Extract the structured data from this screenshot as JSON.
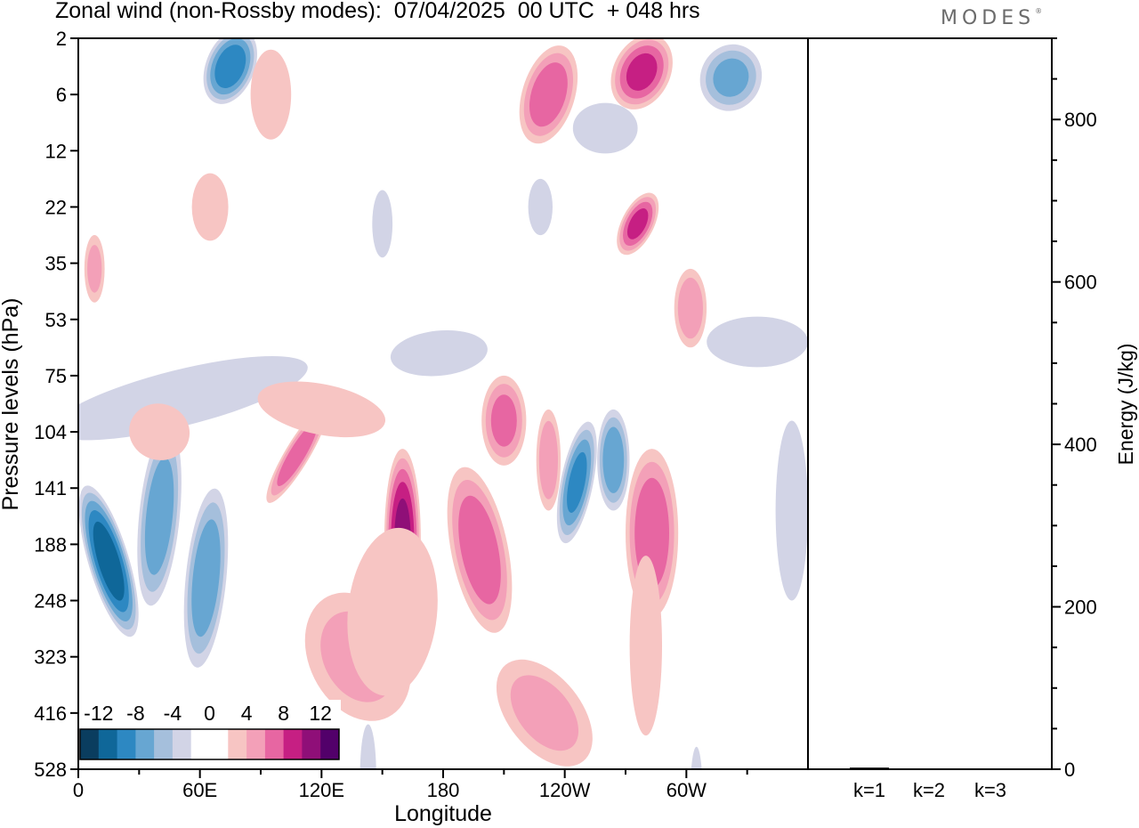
{
  "title": "Zonal wind (non-Rossby modes):  07/04/2025  00 UTC  + 048 hrs",
  "logo": "MODES",
  "logo_mark": "®",
  "colors": {
    "neg": [
      "#0a3d5f",
      "#0f6799",
      "#2d88c2",
      "#67a6d2",
      "#a5bfdc",
      "#d2d4e6"
    ],
    "pos": [
      "#f7c5c3",
      "#f3a0b8",
      "#e766a2",
      "#c61f83",
      "#8f0f78",
      "#52006a"
    ],
    "zero": "#ffffff"
  },
  "chart_data": [
    {
      "type": "heatmap",
      "title": "Zonal wind (non-Rossby modes):  07/04/2025  00 UTC  + 048 hrs",
      "xlabel": "Longitude",
      "ylabel": "Pressure levels (hPa)",
      "x_ticks": [
        "0",
        "60E",
        "120E",
        "180",
        "120W",
        "60W"
      ],
      "x_tick_values": [
        0,
        60,
        120,
        180,
        240,
        300
      ],
      "x_range": [
        0,
        360
      ],
      "y_ticks": [
        "2",
        "6",
        "12",
        "22",
        "35",
        "53",
        "75",
        "104",
        "141",
        "188",
        "248",
        "323",
        "416",
        "528"
      ],
      "colorbar_labels": [
        "-12",
        "-8",
        "-4",
        "0",
        "4",
        "8",
        "12"
      ],
      "colorbar_levels": [
        -14,
        -12,
        -10,
        -8,
        -6,
        -4,
        -2,
        2,
        4,
        6,
        8,
        10,
        12,
        14
      ],
      "blobs": [
        {
          "lon": 15,
          "lev": 9.3,
          "w": 10,
          "h": 1.4,
          "v": -11,
          "tilt": -0.3
        },
        {
          "lon": 40,
          "lev": 8.5,
          "w": 10,
          "h": 1.6,
          "v": -7,
          "tilt": 0.1
        },
        {
          "lon": 63,
          "lev": 9.6,
          "w": 10,
          "h": 1.6,
          "v": -7,
          "tilt": 0.1
        },
        {
          "lon": 75,
          "lev": 0.5,
          "w": 12,
          "h": 0.7,
          "v": -9,
          "tilt": 0.4
        },
        {
          "lon": 160,
          "lev": 8.9,
          "w": 9,
          "h": 1.6,
          "v": 10,
          "tilt": 0.0
        },
        {
          "lon": 198,
          "lev": 9.1,
          "w": 14,
          "h": 1.5,
          "v": 7,
          "tilt": -0.2
        },
        {
          "lon": 283,
          "lev": 8.8,
          "w": 13,
          "h": 1.5,
          "v": 7,
          "tilt": 0.0
        },
        {
          "lon": 246,
          "lev": 7.9,
          "w": 8,
          "h": 1.1,
          "v": -8,
          "tilt": 0.2
        },
        {
          "lon": 264,
          "lev": 7.5,
          "w": 8,
          "h": 0.9,
          "v": -7,
          "tilt": 0.0
        },
        {
          "lon": 210,
          "lev": 6.8,
          "w": 11,
          "h": 0.8,
          "v": 6,
          "tilt": 0.0
        },
        {
          "lon": 108,
          "lev": 7.4,
          "w": 6,
          "h": 1.0,
          "v": 7,
          "tilt": 0.6
        },
        {
          "lon": 232,
          "lev": 7.5,
          "w": 6,
          "h": 0.9,
          "v": 5,
          "tilt": 0.0
        },
        {
          "lon": 232,
          "lev": 1.0,
          "w": 13,
          "h": 0.9,
          "v": 7,
          "tilt": 0.3
        },
        {
          "lon": 278,
          "lev": 0.6,
          "w": 14,
          "h": 0.7,
          "v": 8,
          "tilt": 0.5
        },
        {
          "lon": 322,
          "lev": 0.7,
          "w": 15,
          "h": 0.6,
          "v": -6,
          "tilt": 0.4
        },
        {
          "lon": 276,
          "lev": 3.3,
          "w": 8,
          "h": 0.6,
          "v": 8,
          "tilt": 0.5
        },
        {
          "lon": 302,
          "lev": 4.8,
          "w": 8,
          "h": 0.7,
          "v": 5,
          "tilt": 0.0
        },
        {
          "lon": 95,
          "lev": 1.0,
          "w": 10,
          "h": 0.8,
          "v": 3,
          "tilt": 0.0
        },
        {
          "lon": 8,
          "lev": 4.1,
          "w": 5,
          "h": 0.6,
          "v": 4,
          "tilt": 0.0
        },
        {
          "lon": 230,
          "lev": 12.0,
          "w": 18,
          "h": 1.1,
          "v": 4,
          "tilt": -0.8
        },
        {
          "lon": 138,
          "lev": 11.0,
          "w": 24,
          "h": 1.2,
          "v": 4,
          "tilt": -0.5
        },
        {
          "lon": 155,
          "lev": 10.2,
          "w": 22,
          "h": 1.5,
          "v": 3,
          "tilt": 0.1
        },
        {
          "lon": 50,
          "lev": 6.4,
          "w": 65,
          "h": 0.5,
          "v": -3,
          "tilt": -0.25
        },
        {
          "lon": 178,
          "lev": 5.6,
          "w": 24,
          "h": 0.4,
          "v": -3,
          "tilt": -0.1
        },
        {
          "lon": 335,
          "lev": 5.4,
          "w": 25,
          "h": 0.45,
          "v": -3,
          "tilt": 0.0
        },
        {
          "lon": 120,
          "lev": 6.6,
          "w": 32,
          "h": 0.45,
          "v": 3,
          "tilt": 0.2
        },
        {
          "lon": 40,
          "lev": 7.0,
          "w": 15,
          "h": 0.5,
          "v": 3,
          "tilt": 0.3
        },
        {
          "lon": 352,
          "lev": 8.4,
          "w": 8,
          "h": 1.6,
          "v": -3,
          "tilt": 0.0
        },
        {
          "lon": 280,
          "lev": 10.8,
          "w": 8,
          "h": 1.6,
          "v": 3,
          "tilt": 0.0
        },
        {
          "lon": 260,
          "lev": 1.6,
          "w": 16,
          "h": 0.45,
          "v": -3,
          "tilt": 0.0
        },
        {
          "lon": 65,
          "lev": 3.0,
          "w": 9,
          "h": 0.6,
          "v": 3,
          "tilt": 0.0
        },
        {
          "lon": 228,
          "lev": 3.0,
          "w": 6,
          "h": 0.5,
          "v": -3,
          "tilt": 0.0
        },
        {
          "lon": 150,
          "lev": 3.3,
          "w": 5,
          "h": 0.6,
          "v": -3,
          "tilt": 0.0
        },
        {
          "lon": 143,
          "lev": 13.1,
          "w": 4,
          "h": 0.9,
          "v": -3,
          "tilt": 0.0
        },
        {
          "lon": 305,
          "lev": 13.4,
          "w": 3,
          "h": 0.8,
          "v": -3,
          "tilt": 0.0
        }
      ],
      "energy_axis": {
        "label": "Energy (J/kg)",
        "ticks": [
          "0",
          "200",
          "400",
          "600",
          "800"
        ],
        "tick_values": [
          0,
          200,
          400,
          600,
          800
        ],
        "range": [
          0,
          900
        ],
        "categories": [
          "k=1",
          "k=2",
          "k=3"
        ],
        "values": [
          2,
          1,
          1
        ]
      }
    }
  ]
}
